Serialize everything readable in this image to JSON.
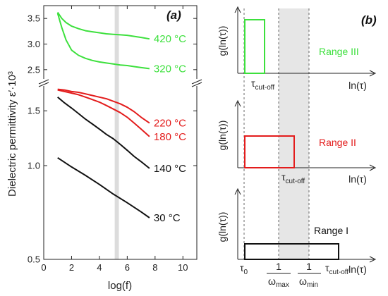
{
  "chart_data": [
    {
      "panel": "(a)",
      "type": "line",
      "xlabel": "log(f)",
      "ylabel": "Dielectric permittivity ε′·10³",
      "xlim": [
        0,
        11
      ],
      "xticks": [
        "0",
        "2",
        "4",
        "6",
        "8",
        "10"
      ],
      "ylim_upper": [
        2.25,
        3.75
      ],
      "yticks_upper": [
        "2.5",
        "3.0",
        "3.5"
      ],
      "ylim_lower": [
        0.5,
        1.85
      ],
      "yticks_lower": [
        "0.5",
        "1.0",
        "1.5"
      ],
      "y_scale": "log",
      "highlight_band": [
        5.1,
        5.4
      ],
      "colors": {
        "green": "#3de03d",
        "red": "#e31c1c",
        "black": "#111111"
      },
      "series": [
        {
          "name": "420 °C",
          "color": "green",
          "axis": "upper",
          "x": [
            1.0,
            1.3,
            1.6,
            2.0,
            2.5,
            3.0,
            3.5,
            4.0,
            4.5,
            5.0,
            5.5,
            6.0,
            6.5,
            7.0,
            7.6
          ],
          "y": [
            3.62,
            3.5,
            3.42,
            3.35,
            3.3,
            3.26,
            3.24,
            3.22,
            3.2,
            3.19,
            3.18,
            3.17,
            3.15,
            3.13,
            3.1
          ]
        },
        {
          "name": "320 °C",
          "color": "green",
          "axis": "upper",
          "x": [
            1.0,
            1.3,
            1.6,
            2.0,
            2.5,
            3.0,
            3.5,
            4.0,
            4.5,
            5.0,
            5.5,
            6.0,
            6.5,
            7.0,
            7.6
          ],
          "y": [
            3.6,
            3.32,
            3.08,
            2.88,
            2.78,
            2.72,
            2.68,
            2.65,
            2.63,
            2.61,
            2.59,
            2.58,
            2.56,
            2.54,
            2.52
          ]
        },
        {
          "name": "220 °C",
          "color": "red",
          "axis": "lower",
          "x": [
            1.0,
            1.5,
            2.0,
            2.5,
            3.0,
            3.5,
            4.0,
            4.5,
            5.0,
            5.5,
            6.0,
            6.5,
            7.0,
            7.6
          ],
          "y": [
            1.76,
            1.75,
            1.73,
            1.72,
            1.7,
            1.68,
            1.66,
            1.64,
            1.61,
            1.58,
            1.54,
            1.49,
            1.43,
            1.37
          ]
        },
        {
          "name": "180 °C",
          "color": "red",
          "axis": "lower",
          "x": [
            1.0,
            1.5,
            2.0,
            2.5,
            3.0,
            3.5,
            4.0,
            4.5,
            5.0,
            5.5,
            6.0,
            6.5,
            7.0,
            7.6
          ],
          "y": [
            1.75,
            1.73,
            1.71,
            1.69,
            1.66,
            1.63,
            1.6,
            1.56,
            1.52,
            1.48,
            1.43,
            1.37,
            1.31,
            1.24
          ]
        },
        {
          "name": "140 °C",
          "color": "black",
          "axis": "lower",
          "x": [
            1.0,
            1.5,
            2.0,
            2.5,
            3.0,
            3.5,
            4.0,
            4.5,
            5.0,
            5.5,
            6.0,
            6.5,
            7.0,
            7.6
          ],
          "y": [
            1.66,
            1.59,
            1.53,
            1.47,
            1.41,
            1.36,
            1.31,
            1.26,
            1.22,
            1.17,
            1.12,
            1.07,
            1.03,
            0.98
          ]
        },
        {
          "name": "30 °C",
          "color": "black",
          "axis": "lower",
          "x": [
            1.0,
            2.0,
            3.0,
            4.0,
            5.0,
            6.0,
            7.0,
            7.6
          ],
          "y": [
            1.06,
            0.99,
            0.93,
            0.87,
            0.81,
            0.76,
            0.71,
            0.68
          ]
        }
      ]
    },
    {
      "panel": "(b)",
      "type": "diagram",
      "ylabel": "g(ln(τ))",
      "xlabel": "ln(τ)",
      "x_markers": {
        "tau0": {
          "main": "τ",
          "sub": "0"
        },
        "inv_wmax": {
          "num": "1",
          "den_main": "ω",
          "den_sub": "max"
        },
        "inv_wmin": {
          "num": "1",
          "den_main": "ω",
          "den_sub": "min"
        },
        "tau_cutoff": {
          "main": "τ",
          "sub": "cut-off"
        }
      },
      "subplots": [
        {
          "name": "Range III",
          "color": "green",
          "tau_cutoff_label": {
            "main": "τ",
            "sub": "cut-off"
          }
        },
        {
          "name": "Range II",
          "color": "red",
          "tau_cutoff_label": {
            "main": "τ",
            "sub": "cut-off"
          }
        },
        {
          "name": "Range I",
          "color": "black"
        }
      ]
    }
  ]
}
